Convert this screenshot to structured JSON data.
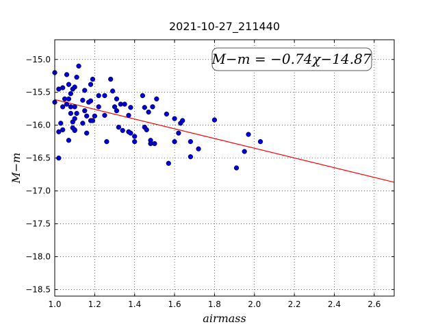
{
  "chart_data": {
    "type": "scatter",
    "title": "2021-10-27_211440",
    "xlabel": "airmass",
    "ylabel": "M−m",
    "xlim": [
      1.0,
      2.7
    ],
    "ylim": [
      -18.6,
      -14.7
    ],
    "y_inverted": false,
    "grid": true,
    "grid_style": "dotted",
    "xticks": [
      1.0,
      1.2,
      1.4,
      1.6,
      1.8,
      2.0,
      2.2,
      2.4,
      2.6
    ],
    "xtick_labels": [
      "1.0",
      "1.2",
      "1.4",
      "1.6",
      "1.8",
      "2.0",
      "2.2",
      "2.4",
      "2.6"
    ],
    "yticks": [
      -15.0,
      -15.5,
      -16.0,
      -16.5,
      -17.0,
      -17.5,
      -18.0,
      -18.5
    ],
    "ytick_labels": [
      "−15.0",
      "−15.5",
      "−16.0",
      "−16.5",
      "−17.0",
      "−17.5",
      "−18.0",
      "−18.5"
    ],
    "fit": {
      "slope": -0.74,
      "intercept": -14.87,
      "label": "M−m = −0.74χ−14.87",
      "color": "#ff0000"
    },
    "marker_color": "#0000cc",
    "series": [
      {
        "points": [
          [
            1.0,
            -15.2
          ],
          [
            1.0,
            -15.65
          ],
          [
            1.02,
            -15.45
          ],
          [
            1.02,
            -16.1
          ],
          [
            1.02,
            -16.5
          ],
          [
            1.03,
            -15.97
          ],
          [
            1.04,
            -15.43
          ],
          [
            1.04,
            -15.72
          ],
          [
            1.04,
            -16.07
          ],
          [
            1.05,
            -15.6
          ],
          [
            1.06,
            -15.23
          ],
          [
            1.06,
            -15.68
          ],
          [
            1.07,
            -15.38
          ],
          [
            1.07,
            -15.6
          ],
          [
            1.07,
            -16.23
          ],
          [
            1.08,
            -15.52
          ],
          [
            1.08,
            -15.72
          ],
          [
            1.08,
            -15.82
          ],
          [
            1.09,
            -15.45
          ],
          [
            1.09,
            -15.95
          ],
          [
            1.09,
            -16.04
          ],
          [
            1.1,
            -15.42
          ],
          [
            1.1,
            -15.72
          ],
          [
            1.1,
            -15.9
          ],
          [
            1.1,
            -16.07
          ],
          [
            1.1,
            -16.08
          ],
          [
            1.11,
            -15.27
          ],
          [
            1.11,
            -15.82
          ],
          [
            1.12,
            -15.1
          ],
          [
            1.14,
            -15.62
          ],
          [
            1.14,
            -15.97
          ],
          [
            1.15,
            -15.47
          ],
          [
            1.15,
            -15.78
          ],
          [
            1.16,
            -15.86
          ],
          [
            1.16,
            -16.12
          ],
          [
            1.17,
            -15.65
          ],
          [
            1.18,
            -15.38
          ],
          [
            1.18,
            -15.63
          ],
          [
            1.18,
            -15.93
          ],
          [
            1.19,
            -15.3
          ],
          [
            1.19,
            -15.93
          ],
          [
            1.2,
            -15.86
          ],
          [
            1.22,
            -15.72
          ],
          [
            1.22,
            -15.55
          ],
          [
            1.25,
            -15.55
          ],
          [
            1.25,
            -15.85
          ],
          [
            1.26,
            -16.25
          ],
          [
            1.28,
            -15.3
          ],
          [
            1.29,
            -15.48
          ],
          [
            1.3,
            -15.72
          ],
          [
            1.31,
            -15.6
          ],
          [
            1.31,
            -15.78
          ],
          [
            1.32,
            -16.03
          ],
          [
            1.33,
            -15.68
          ],
          [
            1.34,
            -16.08
          ],
          [
            1.35,
            -15.68
          ],
          [
            1.37,
            -15.85
          ],
          [
            1.37,
            -16.1
          ],
          [
            1.38,
            -15.73
          ],
          [
            1.38,
            -16.12
          ],
          [
            1.4,
            -16.17
          ],
          [
            1.4,
            -16.25
          ],
          [
            1.44,
            -15.55
          ],
          [
            1.45,
            -16.03
          ],
          [
            1.45,
            -15.73
          ],
          [
            1.46,
            -16.07
          ],
          [
            1.47,
            -15.8
          ],
          [
            1.48,
            -16.23
          ],
          [
            1.48,
            -16.28
          ],
          [
            1.49,
            -15.72
          ],
          [
            1.5,
            -16.28
          ],
          [
            1.51,
            -15.6
          ],
          [
            1.56,
            -15.83
          ],
          [
            1.57,
            -16.58
          ],
          [
            1.6,
            -15.9
          ],
          [
            1.6,
            -16.25
          ],
          [
            1.62,
            -16.12
          ],
          [
            1.63,
            -15.97
          ],
          [
            1.64,
            -15.93
          ],
          [
            1.68,
            -16.25
          ],
          [
            1.68,
            -16.48
          ],
          [
            1.72,
            -16.36
          ],
          [
            1.8,
            -15.92
          ],
          [
            1.91,
            -16.65
          ],
          [
            1.95,
            -16.4
          ],
          [
            1.97,
            -16.14
          ],
          [
            2.03,
            -16.25
          ]
        ]
      }
    ]
  }
}
